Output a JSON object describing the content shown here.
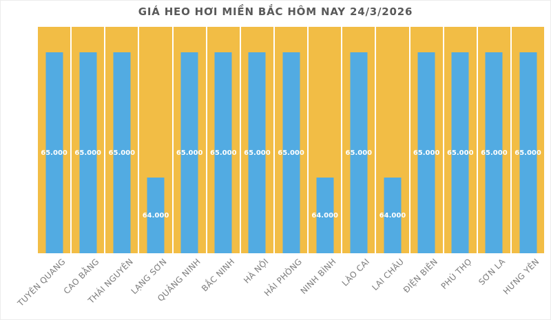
{
  "chart_data": {
    "type": "bar",
    "title": "GIÁ HEO HƠI MIỀN BẮC HÔM NAY 24/3/2026",
    "categories": [
      "TUYÊN QUANG",
      "CAO BẰNG",
      "THÁI NGUYÊN",
      "LẠNG SƠN",
      "QUẢNG NINH",
      "BẮC NINH",
      "HÀ NỘI",
      "HẢI PHÒNG",
      "NINH BÌNH",
      "LÀO CAI",
      "LAI CHÂU",
      "ĐIỆN BIÊN",
      "PHÚ THỌ",
      "SƠN LA",
      "HƯNG YÊN"
    ],
    "values": [
      65000,
      65000,
      65000,
      64000,
      65000,
      65000,
      65000,
      65000,
      64000,
      65000,
      64000,
      65000,
      65000,
      65000,
      65000
    ],
    "value_labels": [
      "65.000",
      "65.000",
      "65.000",
      "64.000",
      "65.000",
      "65.000",
      "65.000",
      "65.000",
      "64.000",
      "65.000",
      "64.000",
      "65.000",
      "65.000",
      "65.000",
      "65.000"
    ],
    "xlabel": "",
    "ylabel": "",
    "ylim": [
      63400,
      65200
    ],
    "grid": false,
    "legend": false,
    "value_label_position": "center-of-bar",
    "x_label_rotation_deg": -45,
    "colors": {
      "bar": "#52ABE2",
      "column_background": "#F2BD45",
      "title": "#595959",
      "axis_label": "#7C7C7C",
      "value_label": "#FFFFFF"
    }
  }
}
